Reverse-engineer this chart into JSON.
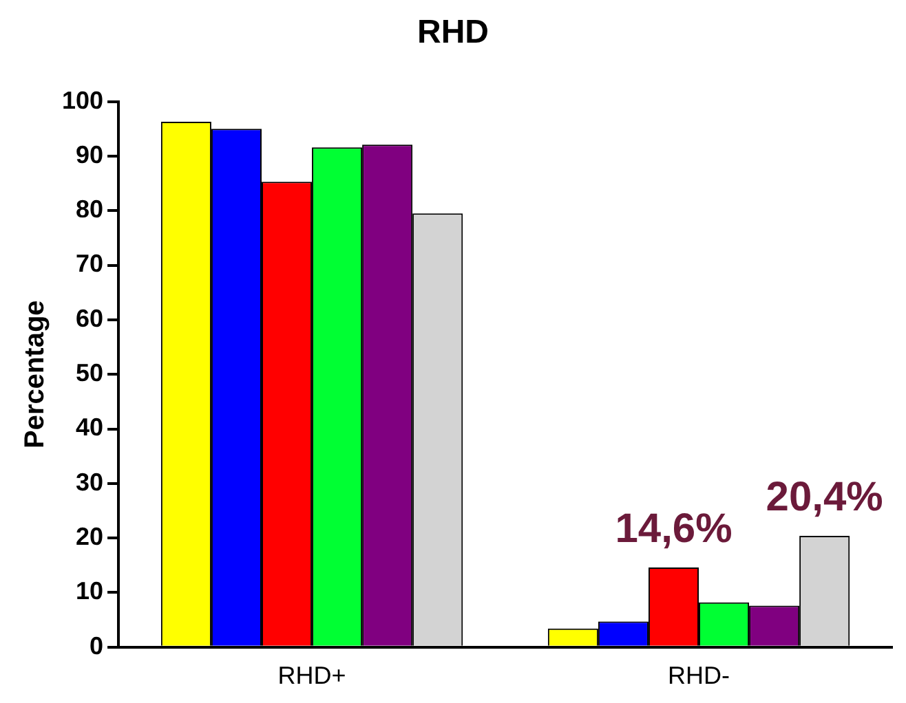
{
  "chart_data": {
    "type": "bar",
    "title": "RHD",
    "ylabel": "Percentage",
    "categories": [
      "RHD+",
      "RHD-"
    ],
    "series": [
      {
        "color": "#ffff00",
        "values": [
          96.3,
          3.4
        ]
      },
      {
        "color": "#0000ff",
        "values": [
          95,
          4.7
        ]
      },
      {
        "color": "#ff0000",
        "values": [
          85.3,
          14.6
        ],
        "value_labels": [
          null,
          "14,6%"
        ]
      },
      {
        "color": "#00ff33",
        "values": [
          91.6,
          8.2
        ]
      },
      {
        "color": "#800080",
        "values": [
          92.1,
          7.6
        ]
      },
      {
        "color": "#d3d3d3",
        "values": [
          79.5,
          20.4
        ],
        "value_labels": [
          null,
          "20,4%"
        ]
      }
    ],
    "ylim": [
      0,
      100
    ],
    "yticks": [
      0,
      10,
      20,
      30,
      40,
      50,
      60,
      70,
      80,
      90,
      100
    ],
    "grid": false,
    "legend": false
  }
}
